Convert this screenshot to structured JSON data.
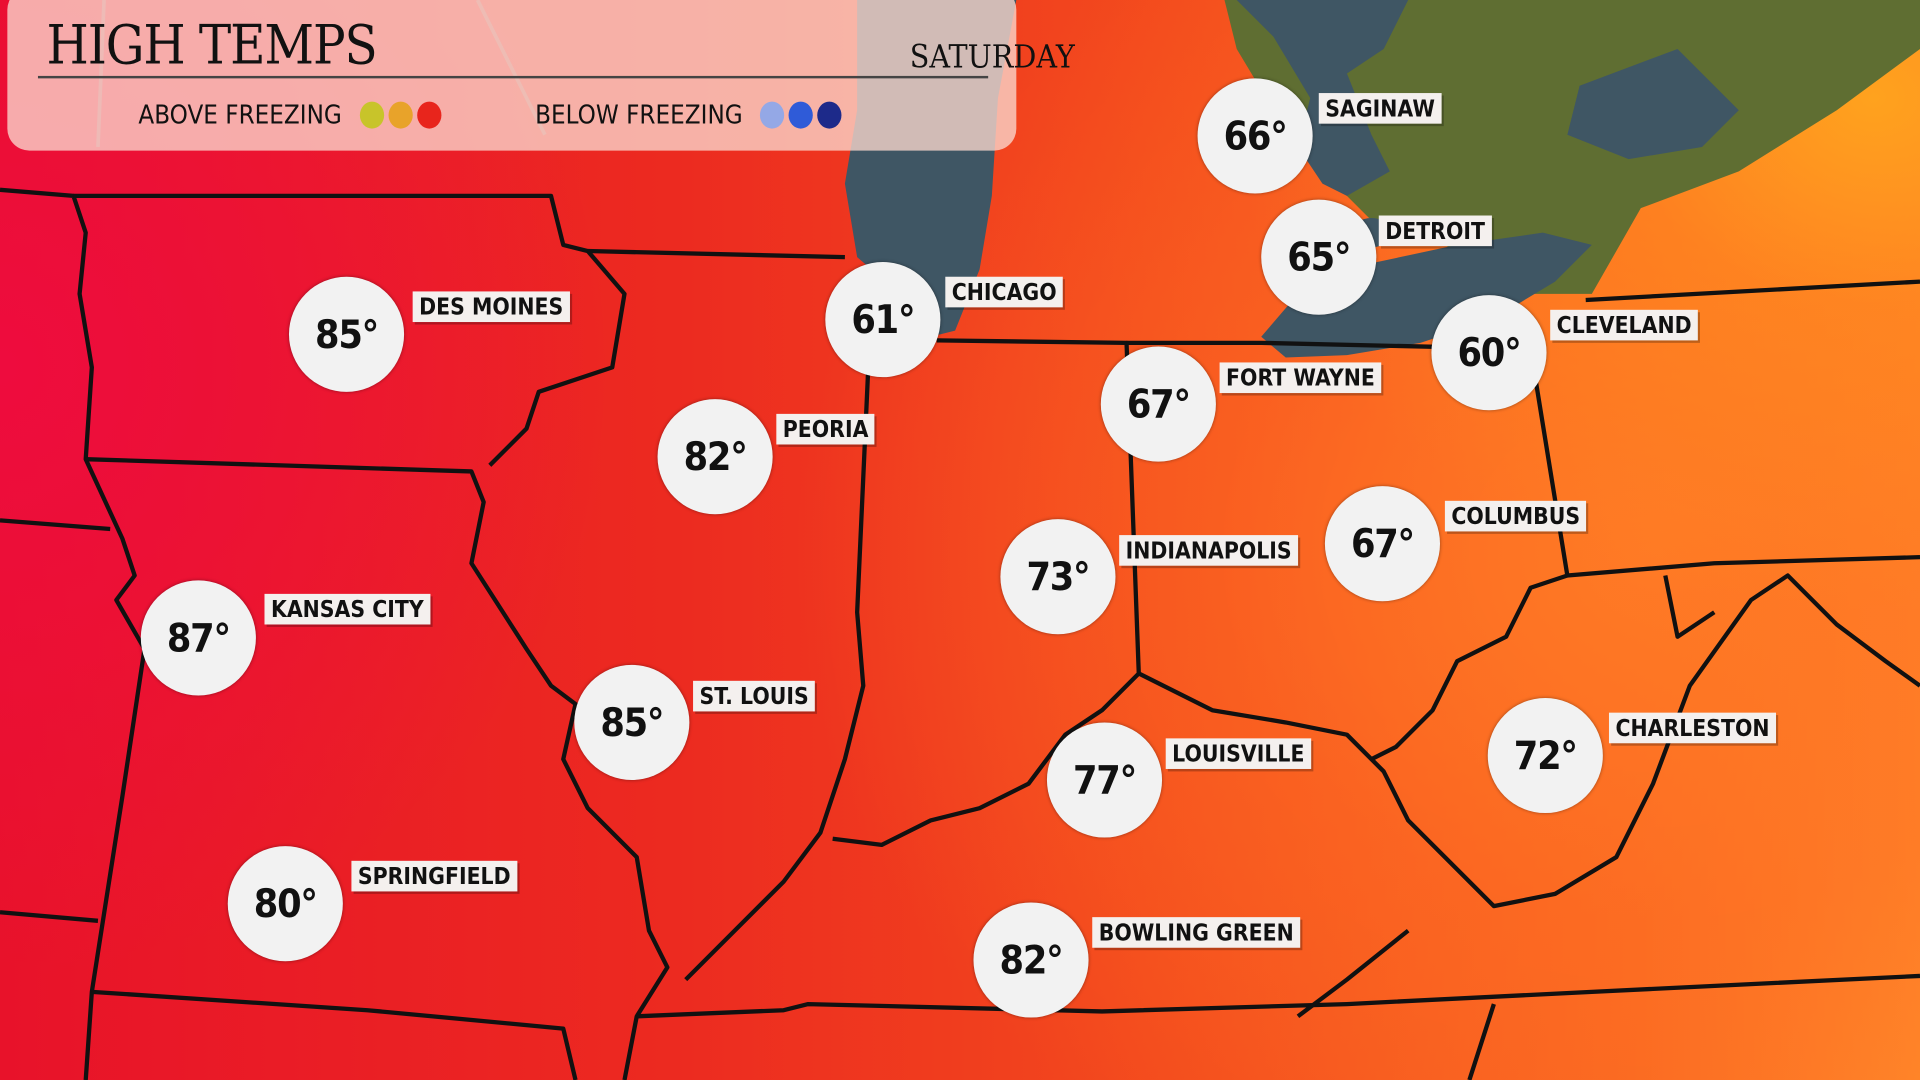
{
  "header": {
    "title": "HIGH TEMPS",
    "day": "SATURDAY"
  },
  "legend": {
    "above_label": "ABOVE FREEZING",
    "above_colors": [
      "#c8c42a",
      "#e8a32a",
      "#e8251c"
    ],
    "below_label": "BELOW FREEZING",
    "below_colors": [
      "#94a8e6",
      "#2f5bd8",
      "#1d2a8a"
    ]
  },
  "cities": [
    {
      "name": "SAGINAW",
      "temp": "66°"
    },
    {
      "name": "DETROIT",
      "temp": "65°"
    },
    {
      "name": "CHICAGO",
      "temp": "61°"
    },
    {
      "name": "CLEVELAND",
      "temp": "60°"
    },
    {
      "name": "DES MOINES",
      "temp": "85°"
    },
    {
      "name": "FORT WAYNE",
      "temp": "67°"
    },
    {
      "name": "PEORIA",
      "temp": "82°"
    },
    {
      "name": "COLUMBUS",
      "temp": "67°"
    },
    {
      "name": "INDIANAPOLIS",
      "temp": "73°"
    },
    {
      "name": "KANSAS CITY",
      "temp": "87°"
    },
    {
      "name": "ST. LOUIS",
      "temp": "85°"
    },
    {
      "name": "LOUISVILLE",
      "temp": "77°"
    },
    {
      "name": "CHARLESTON",
      "temp": "72°"
    },
    {
      "name": "SPRINGFIELD",
      "temp": "80°"
    },
    {
      "name": "BOWLING GREEN",
      "temp": "82°"
    }
  ],
  "colors": {
    "water": "#3f5664",
    "land_canada": "#5f6e32",
    "border": "#111111"
  }
}
